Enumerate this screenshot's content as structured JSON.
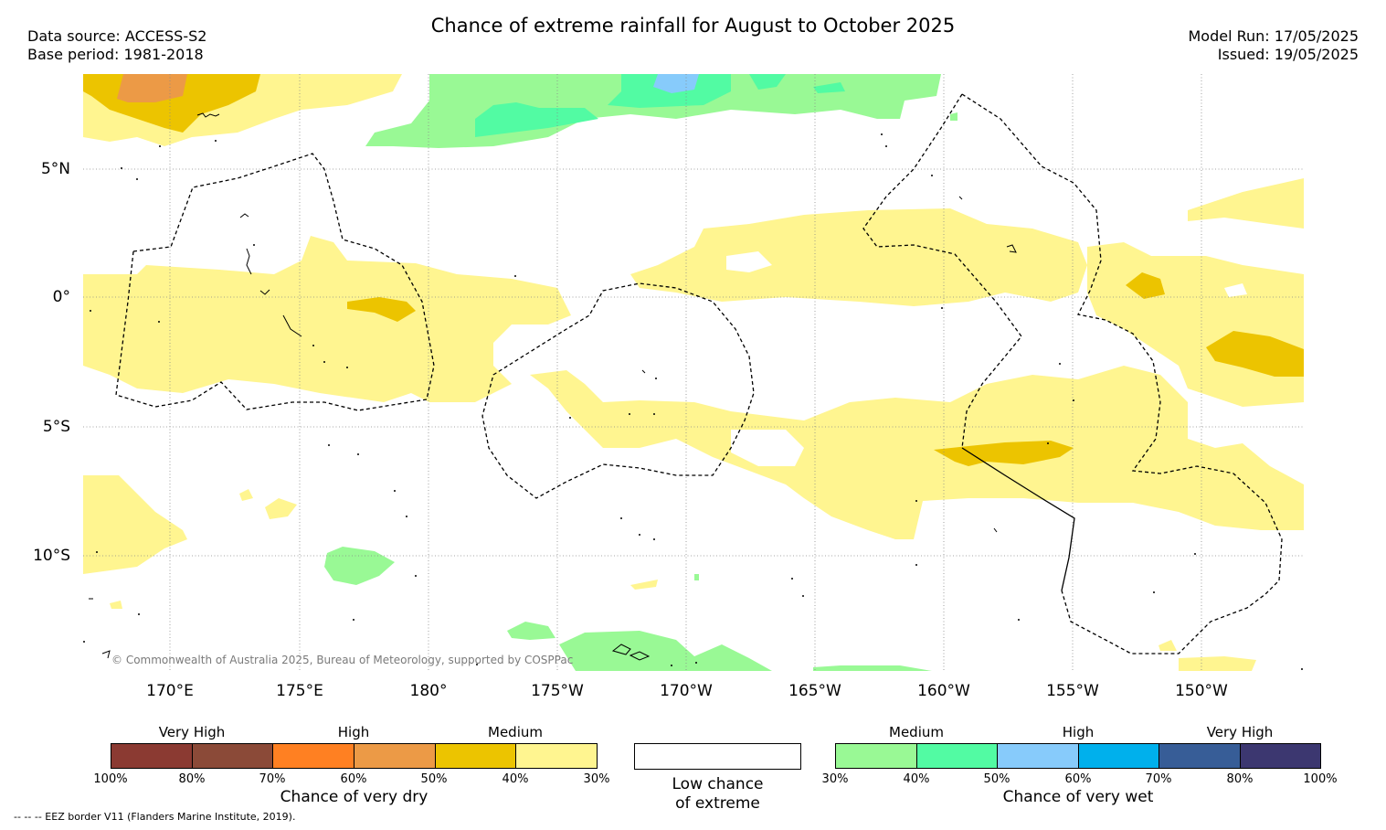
{
  "title": "Chance of extreme rainfall for August to October 2025",
  "header_left": {
    "source": "Data source: ACCESS-S2",
    "base": "Base period: 1981-2018"
  },
  "header_right": {
    "model_run": "Model Run: 17/05/2025",
    "issued": "Issued: 19/05/2025"
  },
  "map": {
    "lat_labels": [
      "5°N",
      "0°",
      "5°S",
      "10°S"
    ],
    "lon_labels": [
      "170°E",
      "175°E",
      "180°",
      "175°W",
      "170°W",
      "165°W",
      "160°W",
      "155°W",
      "150°W"
    ],
    "copyright": "© Commonwealth of Australia 2025, Bureau of Meteorology, supported by COSPPac"
  },
  "legend": {
    "dry": {
      "title": "Chance of very dry",
      "categories": [
        "Very High",
        "High",
        "Medium"
      ],
      "ticks": [
        "100%",
        "80%",
        "70%",
        "60%",
        "50%",
        "40%",
        "30%"
      ],
      "colors": [
        "#8b3a32",
        "#8b4a38",
        "#ff8022",
        "#ec9a46",
        "#ecc400",
        "#fff590"
      ]
    },
    "low": {
      "line1": "Low chance",
      "line2": "of extreme"
    },
    "wet": {
      "title": "Chance of very wet",
      "categories": [
        "Medium",
        "High",
        "Very High"
      ],
      "ticks": [
        "30%",
        "40%",
        "50%",
        "60%",
        "70%",
        "80%",
        "100%"
      ],
      "colors": [
        "#99f995",
        "#52fba3",
        "#87cbfb",
        "#00b0ec",
        "#375d97",
        "#3c3770"
      ]
    }
  },
  "eez_note": "-- -- -- EEZ border V11 (Flanders Marine Institute, 2019)."
}
